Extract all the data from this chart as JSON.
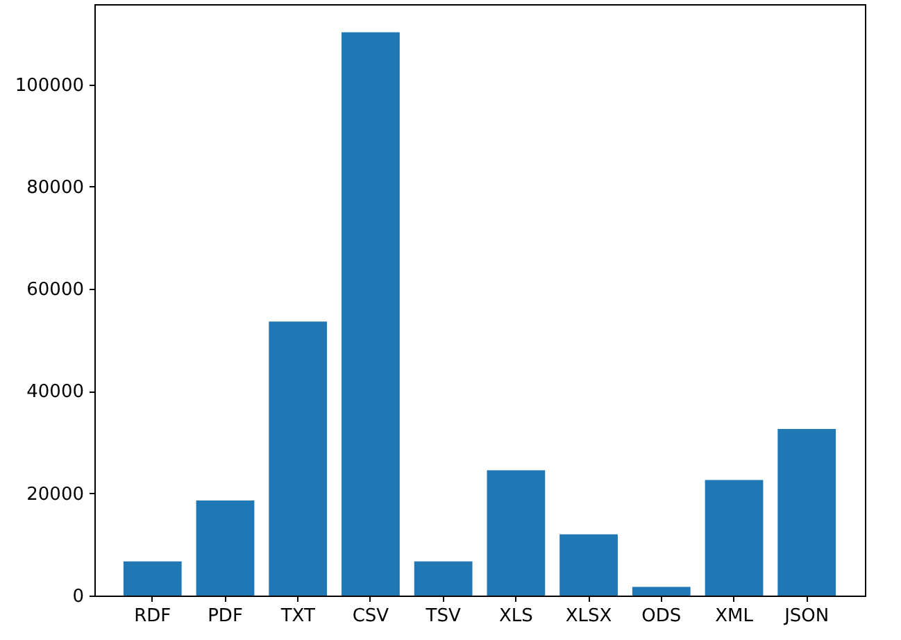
{
  "chart_data": {
    "type": "bar",
    "categories": [
      "RDF",
      "PDF",
      "TXT",
      "CSV",
      "TSV",
      "XLS",
      "XLSX",
      "ODS",
      "XML",
      "JSON"
    ],
    "values": [
      6700,
      18600,
      53600,
      110200,
      6700,
      24500,
      12000,
      1700,
      22600,
      32600
    ],
    "color": "#1f77b4",
    "ylim": [
      0,
      115700
    ],
    "yticks": [
      0,
      20000,
      40000,
      60000,
      80000,
      100000
    ],
    "grid": false
  }
}
